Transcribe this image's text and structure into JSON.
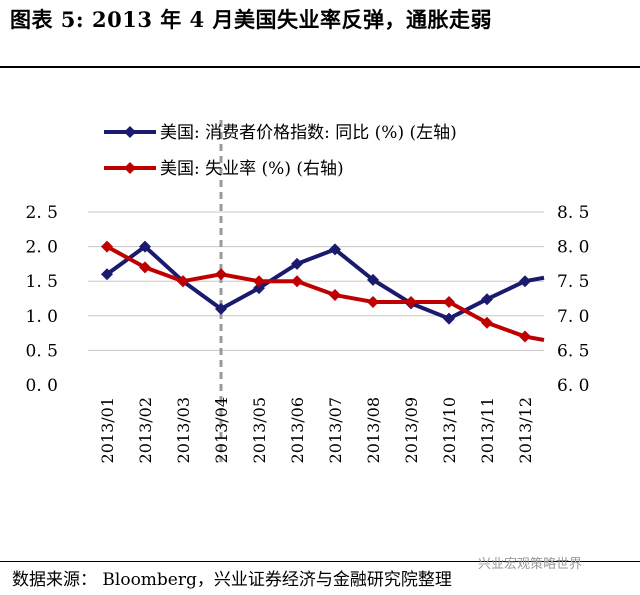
{
  "title": "图表 5:  2013 年 4 月美国失业率反弹，通胀走弱",
  "source": "数据来源： Bloomberg，兴业证券经济与金融研究院整理",
  "watermark": "兴业宏观策略世界",
  "chart_data": {
    "type": "line",
    "categories": [
      "2013/01",
      "2013/02",
      "2013/03",
      "2013/04",
      "2013/05",
      "2013/06",
      "2013/07",
      "2013/08",
      "2013/09",
      "2013/10",
      "2013/11",
      "2013/12"
    ],
    "series": [
      {
        "name": "美国: 消费者价格指数: 同比 (%) (左轴)",
        "axis": "left",
        "color": "#1a1a6e",
        "values": [
          1.6,
          2.0,
          1.5,
          1.1,
          1.4,
          1.75,
          1.96,
          1.52,
          1.18,
          0.96,
          1.24,
          1.5
        ],
        "end_value": 1.55
      },
      {
        "name": "美国: 失业率 (%) (右轴)",
        "axis": "right",
        "color": "#c00000",
        "values": [
          8.0,
          7.7,
          7.5,
          7.6,
          7.5,
          7.5,
          7.3,
          7.2,
          7.2,
          7.2,
          6.9,
          6.7
        ],
        "end_value": 6.65
      }
    ],
    "y_left": {
      "range": [
        0.0,
        2.5
      ],
      "ticks": [
        "0.0",
        "0.5",
        "1.0",
        "1.5",
        "2.0",
        "2.5"
      ]
    },
    "y_right": {
      "range": [
        6.0,
        8.5
      ],
      "ticks": [
        "6.0",
        "6.5",
        "7.0",
        "7.5",
        "8.0",
        "8.5"
      ]
    },
    "marker_line": {
      "category": "2013/04",
      "style": "dashed",
      "color": "#9a9a9a"
    },
    "grid": "horizontal",
    "legend": "top-left"
  }
}
